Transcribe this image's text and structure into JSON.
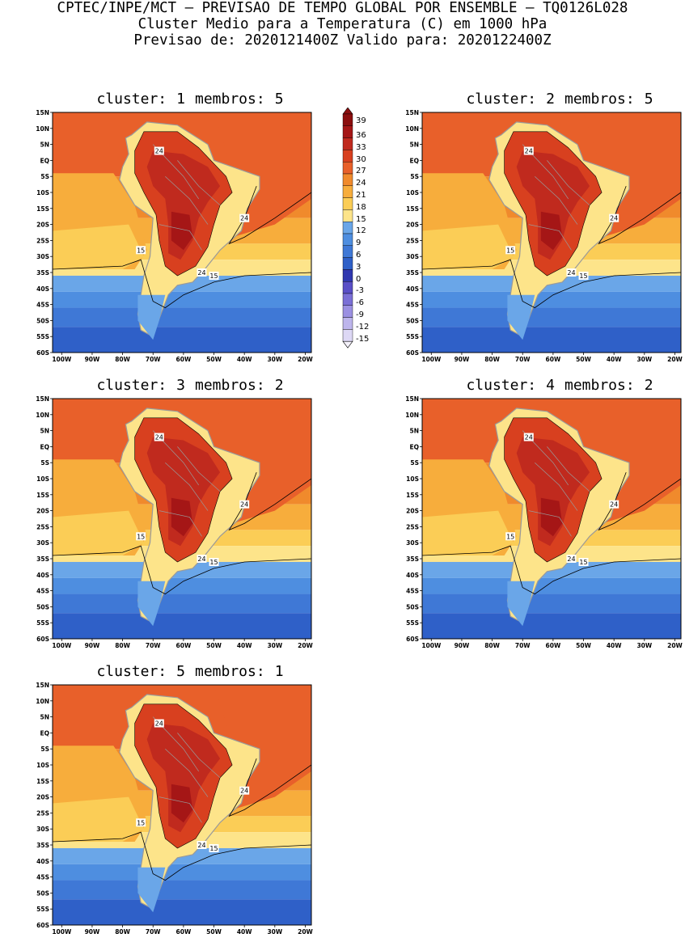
{
  "header": {
    "line1": "CPTEC/INPE/MCT – PREVISAO DE TEMPO GLOBAL POR ENSEMBLE – TQ0126L028",
    "line2": "Cluster Medio para a Temperatura (C) em 1000 hPa",
    "line3": "Previsao de: 2020121400Z   Valido para: 2020122400Z"
  },
  "panels": [
    {
      "cluster_label": "cluster:",
      "cluster": "1",
      "members_label": "membros:",
      "members": "5"
    },
    {
      "cluster_label": "cluster:",
      "cluster": "2",
      "members_label": "membros:",
      "members": "5"
    },
    {
      "cluster_label": "cluster:",
      "cluster": "3",
      "members_label": "membros:",
      "members": "2"
    },
    {
      "cluster_label": "cluster:",
      "cluster": "4",
      "members_label": "membros:",
      "members": "2"
    },
    {
      "cluster_label": "cluster:",
      "cluster": "5",
      "members_label": "membros:",
      "members": "1"
    }
  ],
  "axes": {
    "lat_ticks": [
      "15N",
      "10N",
      "5N",
      "EQ",
      "5S",
      "10S",
      "15S",
      "20S",
      "25S",
      "30S",
      "35S",
      "40S",
      "45S",
      "50S",
      "55S",
      "60S"
    ],
    "lon_ticks": [
      "100W",
      "90W",
      "80W",
      "70W",
      "60W",
      "50W",
      "40W",
      "30W",
      "20W"
    ]
  },
  "contour_labels": {
    "c24": "24",
    "c15": "15"
  },
  "colorbar": {
    "levels": [
      "39",
      "36",
      "33",
      "30",
      "27",
      "24",
      "21",
      "18",
      "15",
      "12",
      "9",
      "6",
      "3",
      "0",
      "-3",
      "-6",
      "-9",
      "-12",
      "-15"
    ],
    "colors": [
      "#8b0e0e",
      "#a51616",
      "#c02a1e",
      "#d8401f",
      "#e8602a",
      "#f08a2c",
      "#f7ad3c",
      "#fbcd56",
      "#fde48a",
      "#6aa6e8",
      "#4e8ee0",
      "#3f78d6",
      "#2f60c8",
      "#3038b0",
      "#5a4fc7",
      "#7a6fd6",
      "#9b90e2",
      "#bdb5ec",
      "#ddd8f5"
    ]
  }
}
